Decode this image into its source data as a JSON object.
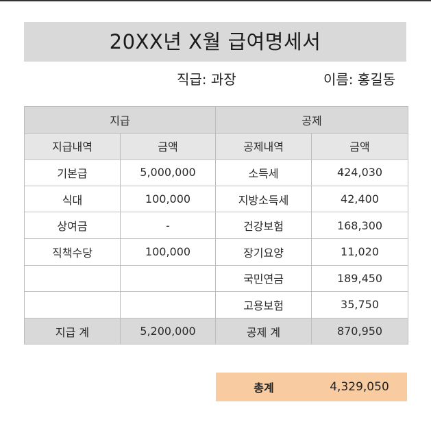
{
  "title": "20XX년 X월 급여명세서",
  "position_text": "직급: 과장",
  "name_text": "이름: 홍길동",
  "groups": {
    "pay": "지급",
    "deduct": "공제"
  },
  "headers": {
    "pay_item": "지급내역",
    "pay_amount": "금액",
    "deduct_item": "공제내역",
    "deduct_amount": "금액"
  },
  "rows": [
    {
      "pay_item": "기본급",
      "pay_amount": "5,000,000",
      "deduct_item": "소득세",
      "deduct_amount": "424,030"
    },
    {
      "pay_item": "식대",
      "pay_amount": "100,000",
      "deduct_item": "지방소득세",
      "deduct_amount": "42,400"
    },
    {
      "pay_item": "상여금",
      "pay_amount": "-",
      "deduct_item": "건강보험",
      "deduct_amount": "168,300"
    },
    {
      "pay_item": "직책수당",
      "pay_amount": "100,000",
      "deduct_item": "장기요양",
      "deduct_amount": "11,020"
    },
    {
      "pay_item": "",
      "pay_amount": "",
      "deduct_item": "국민연금",
      "deduct_amount": "189,450"
    },
    {
      "pay_item": "",
      "pay_amount": "",
      "deduct_item": "고용보험",
      "deduct_amount": "35,750"
    }
  ],
  "totals": {
    "pay_label": "지급 계",
    "pay_value": "5,200,000",
    "deduct_label": "공제 계",
    "deduct_value": "870,950"
  },
  "net": {
    "label": "총계",
    "value": "4,329,050"
  },
  "colors": {
    "header_gray": "#d9d9d9",
    "net_box": "#f8cba0"
  }
}
